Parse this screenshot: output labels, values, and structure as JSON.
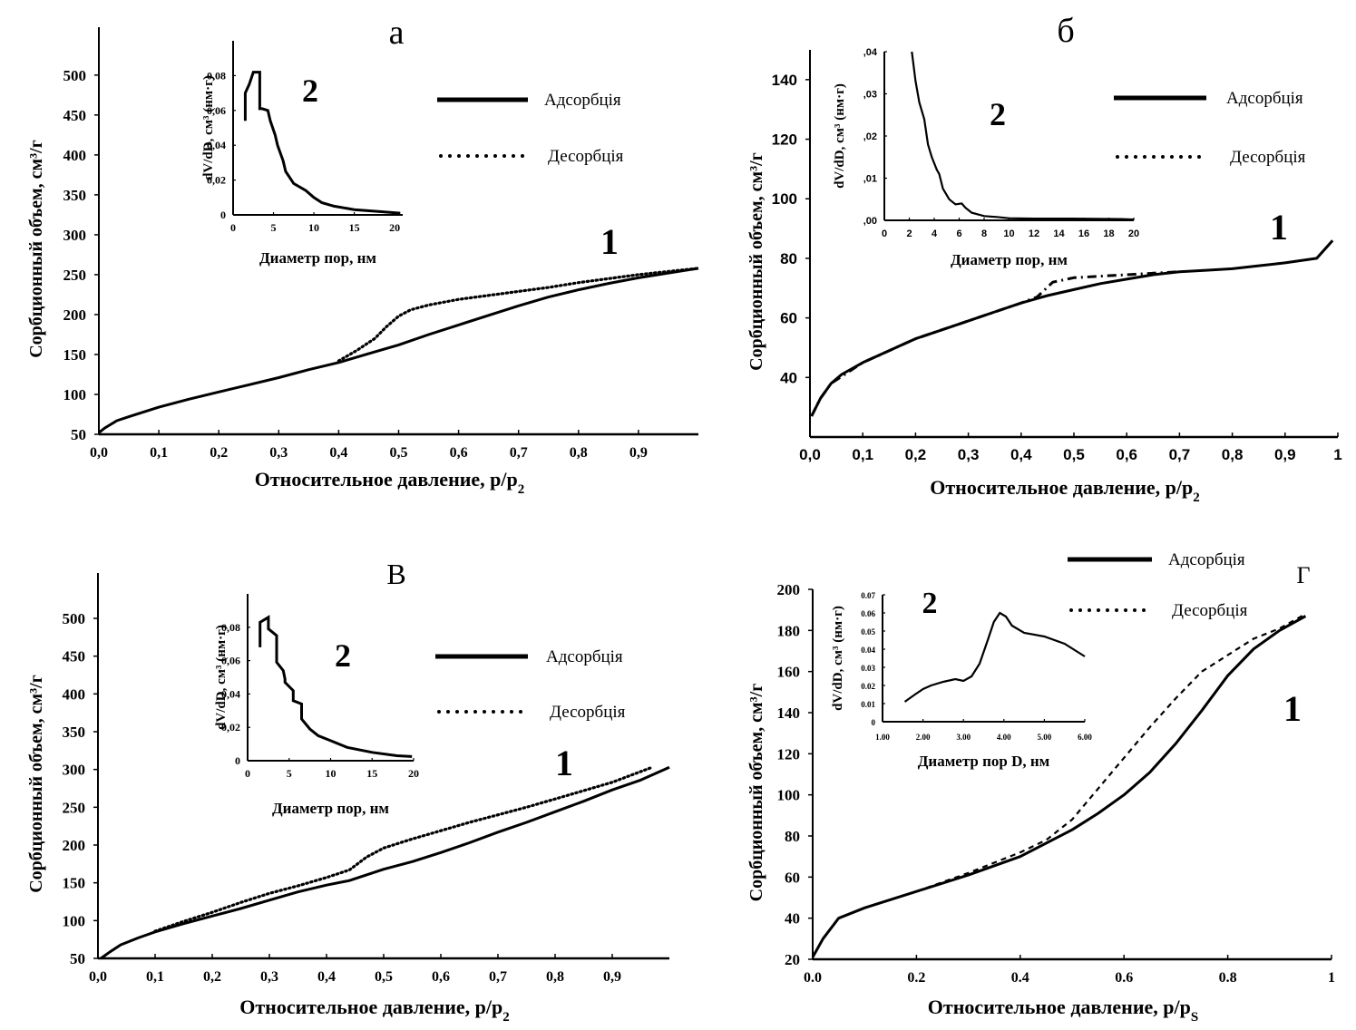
{
  "chart_data": [
    {
      "id": "a",
      "type": "line",
      "panel_label": "а",
      "curve_label": "1",
      "xlabel": "Относительное давление, p/p",
      "xlabel_sub": "2",
      "ylabel": "Сорбционный объем, см³/г",
      "xlim": [
        0,
        1.0
      ],
      "ylim": [
        50,
        560
      ],
      "xticks": [
        0,
        0.1,
        0.2,
        0.3,
        0.4,
        0.5,
        0.6,
        0.7,
        0.8,
        0.9
      ],
      "xtick_labels": [
        "0,0",
        "0,1",
        "0,2",
        "0,3",
        "0,4",
        "0,5",
        "0,6",
        "0,7",
        "0,8",
        "0,9"
      ],
      "yticks": [
        50,
        100,
        150,
        200,
        250,
        300,
        350,
        400,
        450,
        500
      ],
      "ytick_labels": [
        "50",
        "100",
        "150",
        "200",
        "250",
        "300",
        "350",
        "400",
        "450",
        "500"
      ],
      "legend": {
        "position": "top-right",
        "entries": [
          {
            "label": "Адсорбція",
            "style": "solid"
          },
          {
            "label": "Десорбція",
            "style": "dotted"
          }
        ]
      },
      "series": [
        {
          "name": "Адсорбція",
          "style": "solid",
          "x": [
            0,
            0.01,
            0.03,
            0.05,
            0.1,
            0.15,
            0.2,
            0.25,
            0.3,
            0.35,
            0.4,
            0.45,
            0.5,
            0.55,
            0.6,
            0.65,
            0.7,
            0.75,
            0.8,
            0.85,
            0.9,
            0.95,
            1.0
          ],
          "y": [
            52,
            58,
            67,
            72,
            84,
            94,
            103,
            112,
            121,
            131,
            140,
            151,
            162,
            175,
            187,
            199,
            211,
            222,
            231,
            239,
            246,
            252,
            258
          ]
        },
        {
          "name": "Десорбція",
          "style": "dotted",
          "x": [
            0.4,
            0.43,
            0.46,
            0.48,
            0.5,
            0.52,
            0.55,
            0.6,
            0.65,
            0.7,
            0.75,
            0.8,
            0.85,
            0.9,
            0.95,
            1.0
          ],
          "y": [
            142,
            155,
            170,
            185,
            198,
            206,
            212,
            219,
            224,
            229,
            234,
            240,
            245,
            250,
            254,
            258
          ]
        }
      ],
      "inset": {
        "label": "2",
        "type": "line",
        "xlabel": "Диаметр пор, нм",
        "ylabel": "dV/dD, см³ (нм·г)",
        "xlim": [
          0,
          21
        ],
        "ylim": [
          0,
          0.1
        ],
        "xticks": [
          0,
          5,
          10,
          15,
          20
        ],
        "xtick_labels": [
          "0",
          "5",
          "10",
          "15",
          "20"
        ],
        "yticks": [
          0,
          0.02,
          0.04,
          0.06,
          0.08
        ],
        "ytick_labels": [
          "0",
          "0,02",
          "0,04",
          "0,06",
          "0,08"
        ],
        "x": [
          1.5,
          1.5,
          2.0,
          2.5,
          3.3,
          3.3,
          3.6,
          4.3,
          4.6,
          5.2,
          5.5,
          6.2,
          6.5,
          7.5,
          9.0,
          10.0,
          11.0,
          12.5,
          15.0,
          18.0,
          20.7
        ],
        "y": [
          0.054,
          0.07,
          0.075,
          0.082,
          0.082,
          0.061,
          0.061,
          0.06,
          0.054,
          0.046,
          0.04,
          0.031,
          0.025,
          0.018,
          0.014,
          0.01,
          0.007,
          0.005,
          0.003,
          0.002,
          0.001
        ]
      }
    },
    {
      "id": "b",
      "type": "line",
      "panel_label": "б",
      "curve_label": "1",
      "xlabel": "Относительное давление, p/p",
      "xlabel_sub": "2",
      "ylabel": "Сорбционный объем, см³/г",
      "xlim": [
        0,
        1.0
      ],
      "ylim": [
        20,
        150
      ],
      "xticks": [
        0,
        0.1,
        0.2,
        0.3,
        0.4,
        0.5,
        0.6,
        0.7,
        0.8,
        0.9,
        1.0
      ],
      "xtick_labels": [
        "0,0",
        "0,1",
        "0,2",
        "0,3",
        "0,4",
        "0,5",
        "0,6",
        "0,7",
        "0,8",
        "0,9",
        "1"
      ],
      "yticks": [
        40,
        60,
        80,
        100,
        120,
        140
      ],
      "ytick_labels": [
        "40",
        "60",
        "80",
        "100",
        "120",
        "140"
      ],
      "legend": {
        "position": "top-right",
        "entries": [
          {
            "label": "Адсорбція",
            "style": "solid"
          },
          {
            "label": "Десорбція",
            "style": "dotted"
          }
        ]
      },
      "series": [
        {
          "name": "Адсорбція",
          "style": "solid",
          "x": [
            0.003,
            0.02,
            0.04,
            0.06,
            0.1,
            0.15,
            0.2,
            0.25,
            0.3,
            0.35,
            0.4,
            0.45,
            0.5,
            0.55,
            0.6,
            0.65,
            0.7,
            0.75,
            0.8,
            0.85,
            0.9,
            0.96,
            0.99
          ],
          "y": [
            27,
            33,
            38,
            41,
            45,
            49,
            53,
            56,
            59,
            62,
            65,
            67.5,
            69.5,
            71.5,
            73,
            74.5,
            75.5,
            76,
            76.5,
            77.5,
            78.5,
            80,
            86
          ]
        },
        {
          "name": "Десорбція",
          "style": "dashdot",
          "x": [
            0.003,
            0.02,
            0.04,
            0.1,
            0.2,
            0.3,
            0.4,
            0.43,
            0.46,
            0.5,
            0.55,
            0.6,
            0.65,
            0.7
          ],
          "y": [
            27,
            33,
            38,
            45,
            53,
            59,
            65,
            67,
            72,
            73.5,
            74,
            74.5,
            75,
            75.5
          ]
        }
      ],
      "inset": {
        "label": "2",
        "type": "line",
        "xlabel": "Диаметр пор, нм",
        "ylabel": "dV/dD, см³ (нм·г)",
        "xlim": [
          0,
          20
        ],
        "ylim": [
          0,
          0.04
        ],
        "xticks": [
          0,
          2,
          4,
          6,
          8,
          10,
          12,
          14,
          16,
          18,
          20
        ],
        "xtick_labels": [
          "0",
          "2",
          "4",
          "6",
          "8",
          "10",
          "12",
          "14",
          "16",
          "18",
          "20"
        ],
        "yticks": [
          0,
          0.01,
          0.02,
          0.03,
          0.04
        ],
        "ytick_labels": [
          ",00",
          ",01",
          ",02",
          ",03",
          ",04"
        ],
        "x": [
          2.2,
          2.5,
          2.8,
          3.2,
          3.5,
          3.8,
          4.2,
          4.4,
          4.7,
          5.2,
          5.7,
          6.2,
          6.5,
          7.0,
          8.0,
          9.0,
          10.0,
          12.0,
          15.0,
          19.0,
          20.0
        ],
        "y": [
          0.04,
          0.033,
          0.028,
          0.024,
          0.018,
          0.015,
          0.012,
          0.011,
          0.0075,
          0.005,
          0.0038,
          0.004,
          0.003,
          0.0018,
          0.001,
          0.0008,
          0.0005,
          0.0004,
          0.0004,
          0.0003,
          0.0002
        ]
      }
    },
    {
      "id": "v",
      "type": "line",
      "panel_label": "В",
      "curve_label": "1",
      "xlabel": "Относительное давление, p/p",
      "xlabel_sub": "2",
      "ylabel": "Сорбционный объем, см³/г",
      "xlim": [
        0,
        1.0
      ],
      "ylim": [
        50,
        560
      ],
      "xticks": [
        0,
        0.1,
        0.2,
        0.3,
        0.4,
        0.5,
        0.6,
        0.7,
        0.8,
        0.9
      ],
      "xtick_labels": [
        "0,0",
        "0,1",
        "0,2",
        "0,3",
        "0,4",
        "0,5",
        "0,6",
        "0,7",
        "0,8",
        "0,9"
      ],
      "yticks": [
        50,
        100,
        150,
        200,
        250,
        300,
        350,
        400,
        450,
        500
      ],
      "ytick_labels": [
        "50",
        "100",
        "150",
        "200",
        "250",
        "300",
        "350",
        "400",
        "450",
        "500"
      ],
      "legend": {
        "position": "top-right",
        "entries": [
          {
            "label": "Адсорбція",
            "style": "solid"
          },
          {
            "label": "Десорбція",
            "style": "dotted"
          }
        ]
      },
      "series": [
        {
          "name": "Адсорбція",
          "style": "solid",
          "x": [
            0.005,
            0.02,
            0.04,
            0.07,
            0.1,
            0.15,
            0.2,
            0.25,
            0.3,
            0.35,
            0.4,
            0.44,
            0.5,
            0.55,
            0.6,
            0.65,
            0.7,
            0.75,
            0.8,
            0.85,
            0.9,
            0.95,
            1.0
          ],
          "y": [
            50,
            58,
            68,
            77,
            85,
            96,
            106,
            116,
            127,
            138,
            147,
            153,
            168,
            178,
            190,
            203,
            217,
            230,
            244,
            258,
            273,
            286,
            303
          ]
        },
        {
          "name": "Десорбція",
          "style": "dotted",
          "x": [
            0.1,
            0.15,
            0.2,
            0.25,
            0.3,
            0.35,
            0.4,
            0.44,
            0.47,
            0.5,
            0.55,
            0.6,
            0.65,
            0.7,
            0.75,
            0.8,
            0.85,
            0.9,
            0.97
          ],
          "y": [
            86,
            99,
            111,
            124,
            136,
            146,
            157,
            167,
            184,
            196,
            208,
            219,
            230,
            240,
            250,
            261,
            272,
            283,
            303
          ]
        }
      ],
      "inset": {
        "label": "2",
        "type": "line",
        "xlabel": "Диаметр пор, нм",
        "ylabel": "dV/dD, см³ (нм·г)",
        "xlim": [
          0,
          20
        ],
        "ylim": [
          0,
          0.1
        ],
        "xticks": [
          0,
          5,
          10,
          15,
          20
        ],
        "xtick_labels": [
          "0",
          "5",
          "10",
          "15",
          "20"
        ],
        "yticks": [
          0,
          0.02,
          0.04,
          0.06,
          0.08
        ],
        "ytick_labels": [
          "0",
          "0,02",
          "0,04",
          "0,06",
          "0,08"
        ],
        "x": [
          1.5,
          1.5,
          2.5,
          2.5,
          3.5,
          3.5,
          4.3,
          4.5,
          4.5,
          5.5,
          5.5,
          6.5,
          6.5,
          7.5,
          8.5,
          10.0,
          12.0,
          15.0,
          18.0,
          19.8
        ],
        "y": [
          0.068,
          0.083,
          0.086,
          0.079,
          0.075,
          0.059,
          0.054,
          0.049,
          0.047,
          0.042,
          0.036,
          0.034,
          0.025,
          0.019,
          0.015,
          0.012,
          0.008,
          0.005,
          0.003,
          0.0025
        ]
      }
    },
    {
      "id": "g",
      "type": "line",
      "panel_label": "Г",
      "curve_label": "1",
      "xlabel": "Относительное давление, p/p",
      "xlabel_sub": "S",
      "ylabel": "Сорбционный объем, см³/г",
      "xlim": [
        0,
        1.0
      ],
      "ylim": [
        20,
        200
      ],
      "xticks": [
        0,
        0.2,
        0.4,
        0.6,
        0.8,
        1.0
      ],
      "xtick_labels": [
        "0.0",
        "0.2",
        "0.4",
        "0.6",
        "0.8",
        "1"
      ],
      "yticks": [
        20,
        40,
        60,
        80,
        100,
        120,
        140,
        160,
        180,
        200
      ],
      "ytick_labels": [
        "20",
        "40",
        "60",
        "80",
        "100",
        "120",
        "140",
        "160",
        "180",
        "200"
      ],
      "legend": {
        "position": "top-right",
        "entries": [
          {
            "label": "Адсорбція",
            "style": "solid"
          },
          {
            "label": "Десорбція",
            "style": "dotted"
          }
        ]
      },
      "series": [
        {
          "name": "Адсорбція",
          "style": "solid",
          "x": [
            0,
            0.02,
            0.05,
            0.1,
            0.2,
            0.3,
            0.4,
            0.5,
            0.55,
            0.6,
            0.65,
            0.7,
            0.75,
            0.8,
            0.85,
            0.9,
            0.95
          ],
          "y": [
            21,
            30,
            40,
            45,
            53,
            61,
            70,
            83,
            91,
            100,
            111,
            125,
            141,
            158,
            171,
            180,
            187
          ]
        },
        {
          "name": "Десорбція",
          "style": "dashed",
          "x": [
            0,
            0.02,
            0.05,
            0.1,
            0.2,
            0.3,
            0.4,
            0.45,
            0.5,
            0.55,
            0.6,
            0.65,
            0.7,
            0.75,
            0.8,
            0.85,
            0.9,
            0.95
          ],
          "y": [
            21,
            30,
            40,
            45,
            53,
            62,
            72,
            78,
            88,
            103,
            118,
            133,
            147,
            160,
            168,
            176,
            181,
            188
          ]
        }
      ],
      "inset": {
        "label": "2",
        "type": "line",
        "xlabel": "Диаметр пор D, нм",
        "ylabel": "dV/dD, см³ (нм·г)",
        "xlim": [
          1,
          6
        ],
        "ylim": [
          0,
          0.07
        ],
        "xticks": [
          1,
          2,
          3,
          4,
          5,
          6
        ],
        "xtick_labels": [
          "1.00",
          "2.00",
          "3.00",
          "4.00",
          "5.00",
          "6.00"
        ],
        "yticks": [
          0,
          0.01,
          0.02,
          0.03,
          0.04,
          0.05,
          0.06,
          0.07
        ],
        "ytick_labels": [
          "0",
          "0.01",
          "0.02",
          "0.03",
          "0.04",
          "0.05",
          "0.06",
          "0.07"
        ],
        "x": [
          1.55,
          1.8,
          2.0,
          2.2,
          2.5,
          2.8,
          3.0,
          3.2,
          3.4,
          3.6,
          3.75,
          3.9,
          4.05,
          4.2,
          4.5,
          5.0,
          5.5,
          6.0
        ],
        "y": [
          0.011,
          0.015,
          0.018,
          0.02,
          0.022,
          0.0235,
          0.0225,
          0.025,
          0.032,
          0.045,
          0.055,
          0.06,
          0.058,
          0.053,
          0.049,
          0.047,
          0.043,
          0.036
        ]
      }
    }
  ]
}
